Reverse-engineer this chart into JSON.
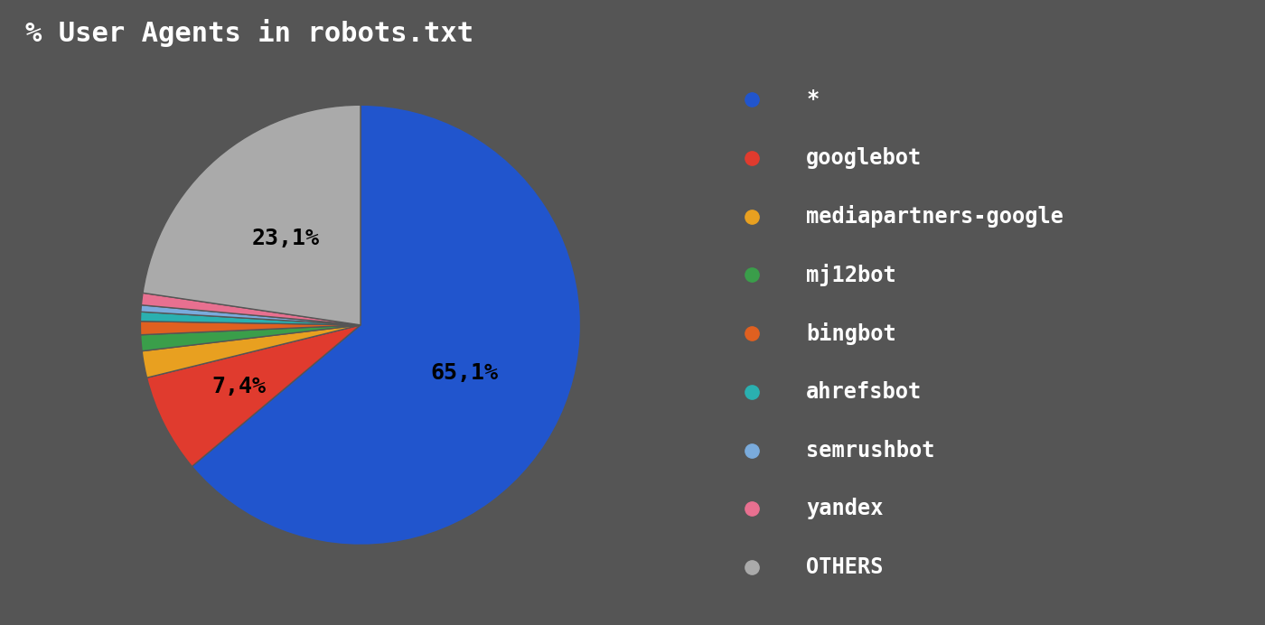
{
  "title": "% User Agents in robots.txt",
  "labels": [
    "*",
    "googlebot",
    "mediapartners-google",
    "mj12bot",
    "bingbot",
    "ahrefsbot",
    "semrushbot",
    "yandex",
    "OTHERS"
  ],
  "values": [
    65.1,
    7.4,
    2.0,
    1.2,
    1.0,
    0.7,
    0.5,
    0.9,
    23.1
  ],
  "colors": [
    "#2155cd",
    "#e03b2e",
    "#e8a020",
    "#3a9e4a",
    "#e06020",
    "#2ab0b0",
    "#7aabdc",
    "#e87090",
    "#aaaaaa"
  ],
  "background_color": "#555555",
  "text_color": "#ffffff",
  "title_fontsize": 22,
  "legend_fontsize": 17,
  "label_fontsize": 18,
  "pct_label_indices": [
    0,
    1,
    8
  ],
  "pct_label_texts": [
    "65,1%",
    "7,4%",
    "23,1%"
  ],
  "pct_label_radii": [
    0.52,
    0.62,
    0.52
  ]
}
